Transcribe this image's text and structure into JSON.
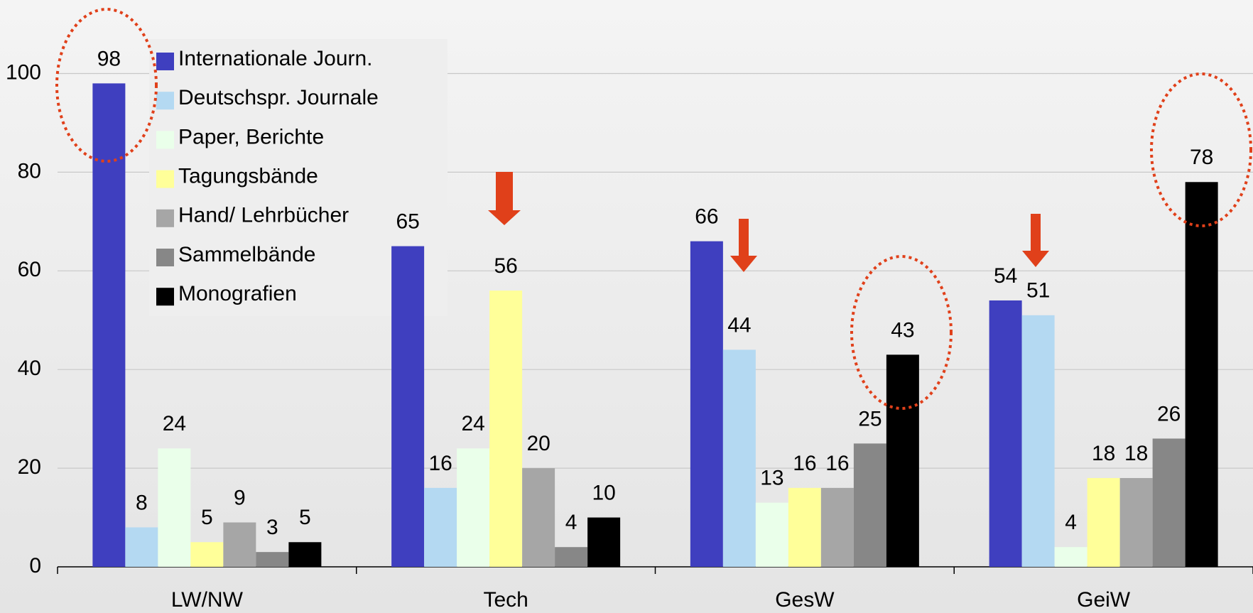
{
  "chart_data": {
    "type": "bar",
    "categories": [
      "LW/NW",
      "Tech",
      "GesW",
      "GeiW"
    ],
    "series": [
      {
        "name": "Internationale Journ.",
        "color": "#3f3fbf",
        "values": [
          98,
          65,
          66,
          54
        ]
      },
      {
        "name": "Deutschspr. Journale",
        "color": "#b4d9f2",
        "values": [
          8,
          16,
          44,
          51
        ]
      },
      {
        "name": "Paper, Berichte",
        "color": "#eaffea",
        "values": [
          24,
          24,
          13,
          4
        ]
      },
      {
        "name": "Tagungsbände",
        "color": "#ffff99",
        "values": [
          5,
          56,
          16,
          18
        ]
      },
      {
        "name": "Hand/ Lehrbücher",
        "color": "#a6a6a6",
        "values": [
          9,
          20,
          16,
          18
        ]
      },
      {
        "name": "Sammelbände",
        "color": "#878787",
        "values": [
          3,
          4,
          25,
          26
        ]
      },
      {
        "name": "Monografien",
        "color": "#000000",
        "values": [
          5,
          10,
          43,
          78
        ]
      }
    ],
    "ylim": [
      0,
      100
    ],
    "yticks": [
      0,
      20,
      40,
      60,
      80,
      100
    ],
    "grid": true,
    "legend": "top-left"
  }
}
